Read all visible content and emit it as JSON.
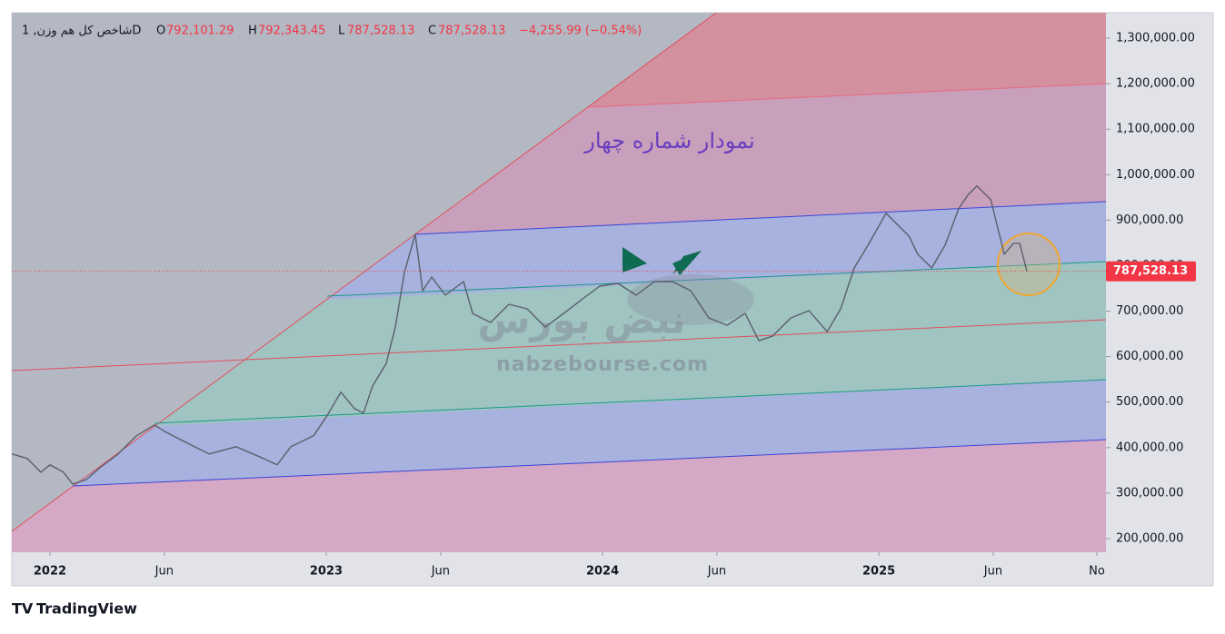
{
  "header": {
    "symbol": "شاخص کل هم وزن, 1D",
    "open_label": "O",
    "open": "792,101.29",
    "high_label": "H",
    "high": "792,343.45",
    "low_label": "L",
    "low": "787,528.13",
    "close_label": "C",
    "close": "787,528.13",
    "change": "−4,255.99 (−0.54%)"
  },
  "chart_data": {
    "type": "line",
    "annotation": "نمودار شماره چهار",
    "watermark_logo": "نبض بورس",
    "watermark": "nabzebourse.com",
    "x": [
      2021.862,
      2021.918,
      2021.967,
      2022.0,
      2022.049,
      2022.082,
      2022.132,
      2022.181,
      2022.247,
      2022.313,
      2022.378,
      2022.414,
      2022.477,
      2022.576,
      2022.674,
      2022.773,
      2022.822,
      2022.872,
      2022.954,
      2023.003,
      2023.053,
      2023.102,
      2023.135,
      2023.168,
      2023.217,
      2023.25,
      2023.283,
      2023.322,
      2023.349,
      2023.382,
      2023.431,
      2023.497,
      2023.53,
      2023.595,
      2023.661,
      2023.727,
      2023.793,
      2023.859,
      2023.924,
      2023.99,
      2024.056,
      2024.122,
      2024.188,
      2024.253,
      2024.319,
      2024.385,
      2024.451,
      2024.516,
      2024.566,
      2024.615,
      2024.681,
      2024.747,
      2024.813,
      2024.862,
      2024.911,
      2024.961,
      2025.026,
      2025.076,
      2025.109,
      2025.141,
      2025.191,
      2025.24,
      2025.289,
      2025.322,
      2025.355,
      2025.405,
      2025.438,
      2025.454,
      2025.487,
      2025.51,
      2025.536
    ],
    "series": [
      {
        "name": "شاخص کل هم وزن",
        "color": "#5a5f6b",
        "values": [
          386000,
          376000,
          346000,
          362000,
          346000,
          320000,
          330000,
          356000,
          386000,
          426000,
          450000,
          436000,
          416000,
          386000,
          402000,
          376000,
          362000,
          402000,
          426000,
          470000,
          522000,
          486000,
          476000,
          536000,
          585000,
          665000,
          785000,
          869000,
          745000,
          775000,
          735000,
          765000,
          695000,
          675000,
          715000,
          705000,
          665000,
          695000,
          725000,
          755000,
          761000,
          735000,
          765000,
          765000,
          745000,
          685000,
          669000,
          695000,
          635000,
          645000,
          685000,
          701000,
          655000,
          705000,
          795000,
          845000,
          915000,
          885000,
          865000,
          825000,
          795000,
          845000,
          925000,
          955000,
          975000,
          945000,
          865000,
          825000,
          849000,
          849000,
          787528.13
        ]
      }
    ],
    "last_price": {
      "value": 787528.13,
      "label": "787,528.13"
    },
    "xlim": [
      2021.862,
      2025.822
    ],
    "xticks": [
      2022,
      {
        "value": 2022.414,
        "label": "Jun"
      },
      2023,
      {
        "value": 2023.414,
        "label": "Jun"
      },
      2024,
      {
        "value": 2024.414,
        "label": "Jun"
      },
      2025,
      {
        "value": 2025.414,
        "label": "Jun"
      },
      {
        "value": 2025.789,
        "label": "No"
      }
    ],
    "ylim": [
      170000,
      1356000
    ],
    "yticks": [
      {
        "value": 200000,
        "label": "200,000.00"
      },
      {
        "value": 300000,
        "label": "300,000.00"
      },
      {
        "value": 400000,
        "label": "400,000.00"
      },
      {
        "value": 500000,
        "label": "500,000.00"
      },
      {
        "value": 600000,
        "label": "600,000.00"
      },
      {
        "value": 700000,
        "label": "700,000.00"
      },
      {
        "value": 800000,
        "label": "800,000.00"
      },
      {
        "value": 900000,
        "label": "900,000.00"
      },
      {
        "value": 1000000,
        "label": "1,000,000.00"
      },
      {
        "value": 1100000,
        "label": "1,100,000.00"
      },
      {
        "value": 1200000,
        "label": "1,200,000.00"
      },
      {
        "value": 1300000,
        "label": "1,300,000.00"
      }
    ]
  },
  "footer": {
    "brand": "TradingView"
  }
}
